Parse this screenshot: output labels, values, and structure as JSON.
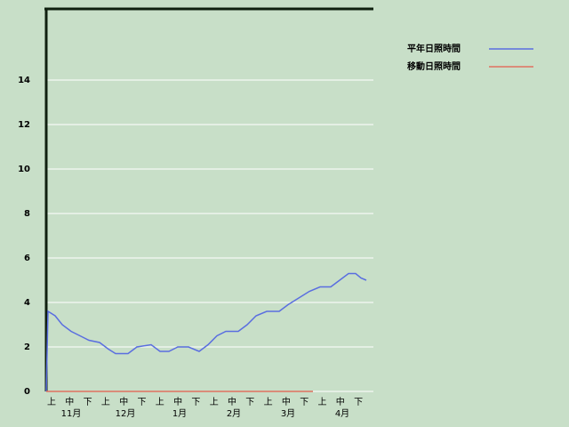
{
  "chart_data": {
    "type": "line",
    "series": [
      {
        "name": "平年日照時間",
        "color": "#5a6ee0",
        "x": [
          0,
          1,
          5,
          9,
          14,
          19,
          24,
          30,
          35,
          39,
          46,
          51,
          59,
          64,
          69,
          74,
          80,
          86,
          91,
          96,
          101,
          108,
          113,
          118,
          124,
          131,
          136,
          142,
          148,
          154,
          160,
          165,
          170,
          174,
          177,
          180
        ],
        "values": [
          0,
          3.6,
          3.4,
          3.0,
          2.7,
          2.5,
          2.3,
          2.2,
          1.9,
          1.7,
          1.7,
          2.0,
          2.1,
          1.8,
          1.8,
          2.0,
          2.0,
          1.8,
          2.1,
          2.5,
          2.7,
          2.7,
          3.0,
          3.4,
          3.6,
          3.6,
          3.9,
          4.2,
          4.5,
          4.7,
          4.7,
          5.0,
          5.3,
          5.3,
          5.1,
          5.0
        ]
      },
      {
        "name": "移動日照時間",
        "color": "#e07060",
        "x": [
          0,
          150
        ],
        "values": [
          0,
          0
        ]
      }
    ],
    "xlim": [
      0,
      184
    ],
    "ylim": [
      0,
      17.2
    ],
    "yticks": [
      0,
      2,
      4,
      6,
      8,
      10,
      12,
      14
    ],
    "grid": true,
    "categories": [
      "上",
      "中",
      "下",
      "上",
      "中",
      "下",
      "上",
      "中",
      "下",
      "上",
      "中",
      "下",
      "上",
      "中",
      "下",
      "上",
      "中",
      "下"
    ],
    "month_labels": [
      "11月",
      "12月",
      "1月",
      "2月",
      "3月",
      "4月"
    ],
    "legend": "top-right"
  }
}
